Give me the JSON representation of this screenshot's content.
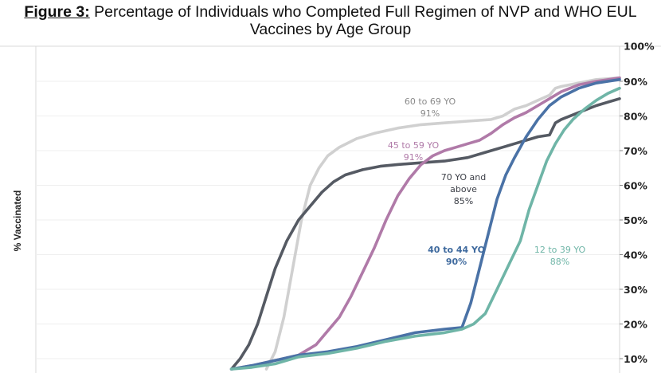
{
  "title": {
    "prefix": "Figure 3:",
    "line1": " Percentage of Individuals who Completed Full Regimen of NVP and WHO EUL",
    "line2": "Vaccines by Age Group"
  },
  "chart_data": {
    "type": "line",
    "title": "Figure 3: Percentage of Individuals who Completed Full Regimen of NVP and WHO EUL Vaccines by Age Group",
    "xlabel": "",
    "ylabel": "% Vaccinated",
    "ylim": [
      7,
      100
    ],
    "xlim": [
      0,
      100
    ],
    "y_ticks": [
      "10%",
      "20%",
      "30%",
      "40%",
      "50%",
      "60%",
      "70%",
      "80%",
      "90%",
      "100%"
    ],
    "y_tick_values": [
      10,
      20,
      30,
      40,
      50,
      60,
      70,
      80,
      90,
      100
    ],
    "grid": true,
    "y_axis_position": "right",
    "x_note": "x is a relative time index (no x-axis labels shown)",
    "series": [
      {
        "name": "60 to 69 YO",
        "final_label": "91%",
        "color": "#d0d0d0",
        "x": [
          39.5,
          41,
          42.5,
          44,
          45.5,
          47,
          48.5,
          50,
          52,
          55,
          58,
          62,
          66,
          70,
          74,
          78,
          80,
          82,
          84,
          86,
          88,
          89,
          90,
          93,
          96,
          100
        ],
        "y": [
          7,
          12,
          22,
          36,
          50,
          60,
          65,
          68.5,
          71,
          73.5,
          75,
          76.5,
          77.5,
          78,
          78.5,
          79,
          80,
          82,
          83,
          84.5,
          86,
          88,
          88.5,
          89.5,
          90.5,
          91
        ]
      },
      {
        "name": "70 YO and above",
        "final_label": "85%",
        "color": "#555a63",
        "x": [
          33.5,
          35,
          36.5,
          38,
          39.5,
          41,
          43,
          45,
          47,
          49,
          51,
          53,
          56,
          59,
          62,
          66,
          70,
          74,
          78,
          80,
          82,
          84,
          86,
          88,
          89,
          90,
          93,
          96,
          100
        ],
        "y": [
          7,
          10,
          14,
          20,
          28,
          36,
          44,
          50,
          54,
          58,
          61,
          63,
          64.5,
          65.5,
          66,
          66.5,
          67,
          68,
          70,
          71,
          72,
          73,
          74,
          74.5,
          78,
          79,
          81,
          83,
          85
        ]
      },
      {
        "name": "45 to 59 YO",
        "final_label": "91%",
        "color": "#b07aa8",
        "x": [
          33.5,
          37,
          41,
          45,
          48,
          50,
          52,
          54,
          56,
          58,
          60,
          62,
          64,
          66,
          68,
          70,
          72,
          74,
          76,
          78,
          80,
          82,
          84,
          86,
          88,
          90,
          93,
          96,
          100
        ],
        "y": [
          7,
          8,
          9.5,
          11,
          14,
          18,
          22,
          28,
          35,
          42,
          50,
          57,
          62,
          66,
          68.5,
          70,
          71,
          72,
          73,
          75,
          77.5,
          79.5,
          81,
          83,
          85,
          87,
          89,
          90,
          91
        ]
      },
      {
        "name": "40 to 44 YO",
        "final_label": "90%",
        "color": "#4a72a6",
        "x": [
          33.5,
          37,
          41,
          45,
          50,
          55,
          60,
          65,
          70,
          73,
          74.5,
          76,
          77.5,
          79,
          80.5,
          82,
          84,
          86,
          88,
          90,
          93,
          96,
          100
        ],
        "y": [
          7,
          8,
          9.5,
          11,
          12,
          13.5,
          15.5,
          17.5,
          18.5,
          19,
          26,
          36,
          46,
          56,
          63,
          68,
          74,
          79,
          83,
          85.5,
          88,
          89.5,
          90.5
        ]
      },
      {
        "name": "12 to 39 YO",
        "final_label": "88%",
        "color": "#6fb5a7",
        "x": [
          33.5,
          37,
          41,
          45,
          50,
          55,
          60,
          65,
          70,
          73,
          75,
          77,
          79,
          81,
          83,
          84.5,
          86,
          87.5,
          89,
          90.5,
          92,
          94,
          96,
          98,
          100
        ],
        "y": [
          7,
          7.5,
          8.5,
          10.5,
          11.5,
          13,
          15,
          16.5,
          17.5,
          18.5,
          20,
          23,
          30,
          37,
          44,
          53,
          60,
          67,
          72,
          76,
          79,
          82,
          84.5,
          86.5,
          88
        ]
      }
    ],
    "annotations": [
      {
        "series": "60 to 69 YO",
        "lines": [
          "60 to 69 YO",
          "91%"
        ],
        "color": "#8a8a8a"
      },
      {
        "series": "45 to 59 YO",
        "lines": [
          "45 to 59 YO",
          "91%"
        ],
        "color": "#b07aa8"
      },
      {
        "series": "70 YO and above",
        "lines": [
          "70 YO and",
          "above",
          "85%"
        ],
        "color": "#3d4048"
      },
      {
        "series": "40 to 44 YO",
        "lines": [
          "40 to 44 YO",
          "90%"
        ],
        "color": "#3f6a9e"
      },
      {
        "series": "12 to 39 YO",
        "lines": [
          "12 to 39 YO",
          "88%"
        ],
        "color": "#6fb5a7"
      }
    ]
  }
}
